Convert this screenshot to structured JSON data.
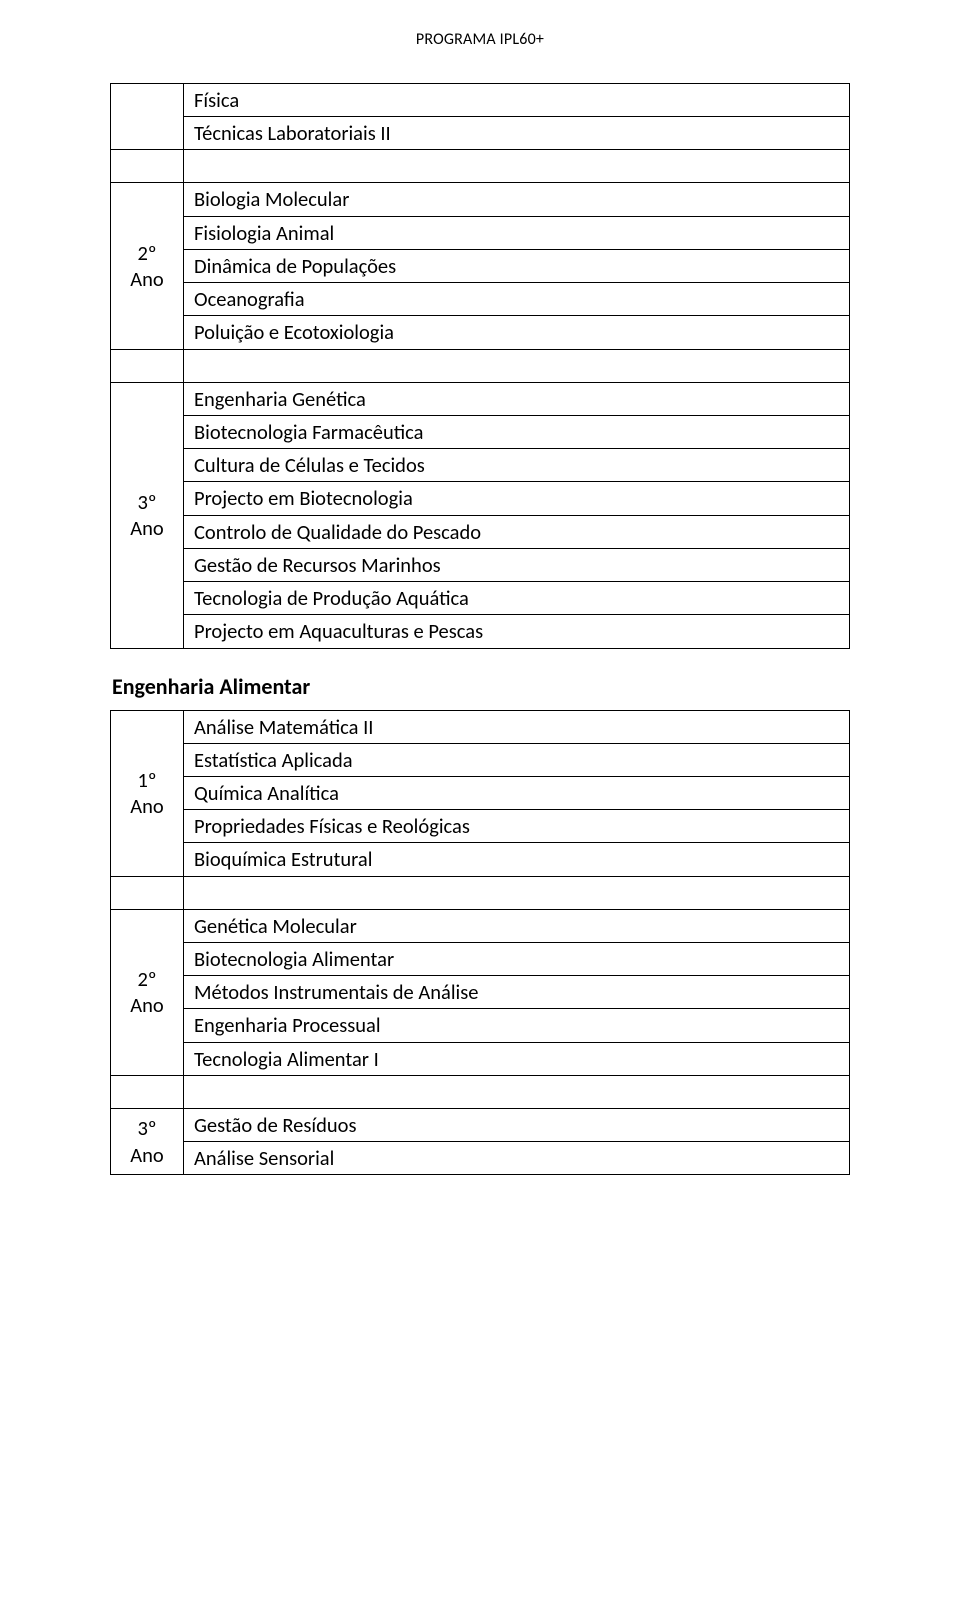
{
  "header": "PROGRAMA IPL60+",
  "table1": {
    "intro_rows": [
      "Física",
      "Técnicas Laboratoriais II"
    ],
    "groups": [
      {
        "left_line1": "2º",
        "left_line2": "Ano",
        "rows": [
          "Biologia Molecular",
          "Fisiologia Animal",
          "Dinâmica de Populações",
          "Oceanografia",
          "Poluição e Ecotoxiologia"
        ]
      },
      {
        "left_line1": "3º",
        "left_line2": "Ano",
        "rows": [
          "Engenharia Genética",
          "Biotecnologia Farmacêutica",
          "Cultura de Células e Tecidos",
          "Projecto em Biotecnologia",
          "Controlo de Qualidade do Pescado",
          "Gestão de Recursos Marinhos",
          "Tecnologia de Produção Aquática",
          "Projecto em Aquaculturas e Pescas"
        ]
      }
    ]
  },
  "section2_title": "Engenharia Alimentar",
  "table2": {
    "groups": [
      {
        "left_line1": "1º",
        "left_line2": "Ano",
        "rows": [
          "Análise Matemática II",
          "Estatística Aplicada",
          "Química Analítica",
          "Propriedades Físicas e Reológicas",
          "Bioquímica Estrutural"
        ]
      },
      {
        "left_line1": "2º",
        "left_line2": "Ano",
        "rows": [
          "Genética Molecular",
          "Biotecnologia Alimentar",
          "Métodos Instrumentais de Análise",
          "Engenharia Processual",
          "Tecnologia Alimentar I"
        ]
      },
      {
        "left_line1": "3º",
        "left_line2": "Ano",
        "rows": [
          "Gestão de Resíduos",
          "Análise Sensorial"
        ]
      }
    ]
  }
}
